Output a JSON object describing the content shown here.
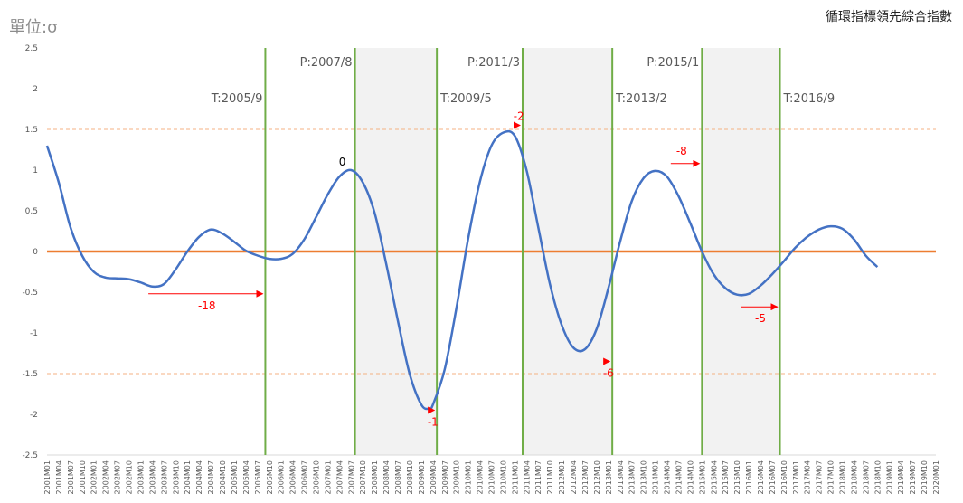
{
  "unit_label": "單位:σ",
  "title": "循環指標領先綜合指數",
  "chart_data": {
    "type": "line",
    "title": "循環指標領先綜合指數",
    "ylabel": "單位:σ",
    "ylim": [
      -2.5,
      2.5
    ],
    "yticks": [
      "2.5",
      "2",
      "1.5",
      "1",
      "0.5",
      "0",
      "-0.5",
      "-1",
      "-1.5",
      "-2",
      "-2.5"
    ],
    "x_start": "2001M01",
    "x_end": "2020M01",
    "xtick_step_months": 3,
    "series": [
      {
        "color": "#4472c4",
        "points": [
          [
            "2001M01",
            1.3
          ],
          [
            "2001M04",
            0.85
          ],
          [
            "2001M07",
            0.3
          ],
          [
            "2001M10",
            -0.05
          ],
          [
            "2002M01",
            -0.25
          ],
          [
            "2002M04",
            -0.32
          ],
          [
            "2002M07",
            -0.33
          ],
          [
            "2002M10",
            -0.34
          ],
          [
            "2003M01",
            -0.38
          ],
          [
            "2003M04",
            -0.43
          ],
          [
            "2003M07",
            -0.4
          ],
          [
            "2003M10",
            -0.22
          ],
          [
            "2004M01",
            0.0
          ],
          [
            "2004M04",
            0.18
          ],
          [
            "2004M07",
            0.27
          ],
          [
            "2004M10",
            0.22
          ],
          [
            "2005M01",
            0.12
          ],
          [
            "2005M04",
            0.01
          ],
          [
            "2005M07",
            -0.05
          ],
          [
            "2005M10",
            -0.09
          ],
          [
            "2006M01",
            -0.09
          ],
          [
            "2006M04",
            -0.03
          ],
          [
            "2006M07",
            0.15
          ],
          [
            "2006M10",
            0.42
          ],
          [
            "2007M01",
            0.7
          ],
          [
            "2007M04",
            0.92
          ],
          [
            "2007M07",
            1.0
          ],
          [
            "2007M10",
            0.85
          ],
          [
            "2008M01",
            0.48
          ],
          [
            "2008M04",
            -0.15
          ],
          [
            "2008M07",
            -0.85
          ],
          [
            "2008M10",
            -1.5
          ],
          [
            "2009M01",
            -1.88
          ],
          [
            "2009M03",
            -1.93
          ],
          [
            "2009M04",
            -1.88
          ],
          [
            "2009M07",
            -1.45
          ],
          [
            "2009M10",
            -0.7
          ],
          [
            "2010M01",
            0.15
          ],
          [
            "2010M04",
            0.85
          ],
          [
            "2010M07",
            1.3
          ],
          [
            "2010M10",
            1.46
          ],
          [
            "2011M01",
            1.42
          ],
          [
            "2011M04",
            1.0
          ],
          [
            "2011M07",
            0.3
          ],
          [
            "2011M10",
            -0.4
          ],
          [
            "2012M01",
            -0.9
          ],
          [
            "2012M04",
            -1.18
          ],
          [
            "2012M07",
            -1.2
          ],
          [
            "2012M10",
            -0.95
          ],
          [
            "2013M01",
            -0.45
          ],
          [
            "2013M04",
            0.12
          ],
          [
            "2013M07",
            0.62
          ],
          [
            "2013M10",
            0.9
          ],
          [
            "2014M01",
            0.99
          ],
          [
            "2014M04",
            0.92
          ],
          [
            "2014M07",
            0.68
          ],
          [
            "2014M10",
            0.35
          ],
          [
            "2015M01",
            0.0
          ],
          [
            "2015M04",
            -0.28
          ],
          [
            "2015M07",
            -0.45
          ],
          [
            "2015M10",
            -0.53
          ],
          [
            "2016M01",
            -0.52
          ],
          [
            "2016M04",
            -0.42
          ],
          [
            "2016M07",
            -0.28
          ],
          [
            "2016M10",
            -0.12
          ],
          [
            "2017M01",
            0.05
          ],
          [
            "2017M04",
            0.18
          ],
          [
            "2017M07",
            0.27
          ],
          [
            "2017M10",
            0.31
          ],
          [
            "2018M01",
            0.28
          ],
          [
            "2018M04",
            0.15
          ],
          [
            "2018M07",
            -0.05
          ],
          [
            "2018M10",
            -0.19
          ]
        ]
      }
    ],
    "reference_lines": {
      "zero_line_color": "#ed7d31",
      "threshold_values": [
        1.5,
        -1.5
      ],
      "threshold_color": "#f4b183"
    },
    "turning_points": [
      {
        "label": "T:2005/9",
        "date": "2005M09"
      },
      {
        "label": "P:2007/8",
        "date": "2007M08"
      },
      {
        "label": "T:2009/5",
        "date": "2009M05"
      },
      {
        "label": "P:2011/3",
        "date": "2011M03"
      },
      {
        "label": "T:2013/2",
        "date": "2013M02"
      },
      {
        "label": "P:2015/1",
        "date": "2015M01"
      },
      {
        "label": "T:2016/9",
        "date": "2016M09"
      }
    ],
    "turning_line_color": "#70ad47",
    "recession_shading": [
      {
        "from": "2007M08",
        "to": "2009M05"
      },
      {
        "from": "2011M03",
        "to": "2013M02"
      },
      {
        "from": "2015M01",
        "to": "2016M09"
      }
    ],
    "shading_color": "#f2f2f2",
    "lead_annotations": [
      {
        "text": "-18",
        "from": "2003M03",
        "to": "2005M09",
        "y": -0.52,
        "color": "#ff0000"
      },
      {
        "text": "0",
        "from": null,
        "to": "2007M08",
        "y": 1.0,
        "color": "#000000"
      },
      {
        "text": "-1",
        "from": "2009M03",
        "to": "2009M05",
        "y": -1.95,
        "color": "#ff0000"
      },
      {
        "text": "-2",
        "from": "2011M01",
        "to": "2011M03",
        "y": 1.55,
        "color": "#ff0000"
      },
      {
        "text": "-6",
        "from": "2012M12",
        "to": "2013M02",
        "y": -1.35,
        "color": "#ff0000"
      },
      {
        "text": "-8",
        "from": "2014M05",
        "to": "2015M01",
        "y": 1.08,
        "color": "#ff0000"
      },
      {
        "text": "-5",
        "from": "2015M11",
        "to": "2016M09",
        "y": -0.68,
        "color": "#ff0000"
      }
    ]
  }
}
